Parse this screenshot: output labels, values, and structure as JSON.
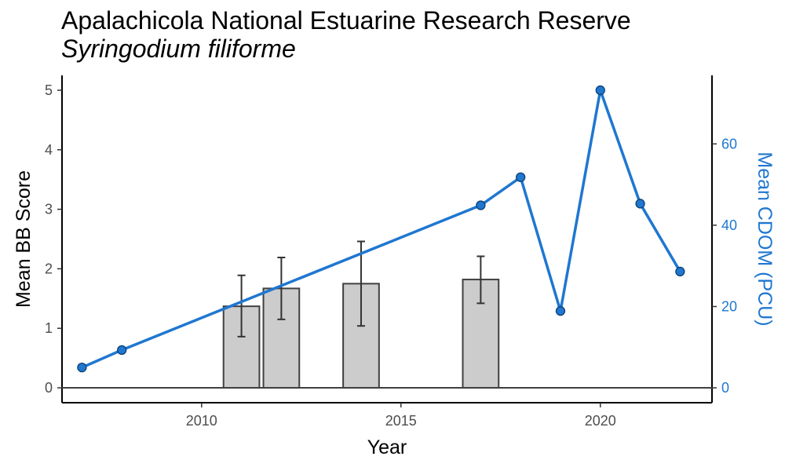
{
  "title": "Apalachicola National Estuarine Research Reserve",
  "subtitle": "Syringodium filiforme",
  "chart_data": {
    "type": "bar+line",
    "x_axis": {
      "label": "Year",
      "range": [
        2006.5,
        2022.8
      ],
      "ticks": [
        2010,
        2015,
        2020
      ]
    },
    "y_left": {
      "label": "Mean BB Score",
      "range": [
        -0.25,
        5.25
      ],
      "ticks": [
        0,
        1,
        2,
        3,
        4,
        5
      ]
    },
    "y_right": {
      "label": "Mean CDOM (PCU)",
      "range": [
        -3.66,
        76.86
      ],
      "ticks": [
        0,
        20,
        40,
        60
      ]
    },
    "bars": {
      "name": "Mean BB Score",
      "color": "#cccccc",
      "points": [
        {
          "year": 2011,
          "value": 1.37,
          "err_low": 0.86,
          "err_high": 1.89
        },
        {
          "year": 2012,
          "value": 1.67,
          "err_low": 1.15,
          "err_high": 2.19
        },
        {
          "year": 2014,
          "value": 1.75,
          "err_low": 1.04,
          "err_high": 2.46
        },
        {
          "year": 2017,
          "value": 1.82,
          "err_low": 1.42,
          "err_high": 2.21
        }
      ]
    },
    "line": {
      "name": "Mean CDOM (PCU)",
      "color": "#1f77d0",
      "points": [
        {
          "year": 2007,
          "value": 5.0
        },
        {
          "year": 2008,
          "value": 9.3
        },
        {
          "year": 2017,
          "value": 44.9
        },
        {
          "year": 2018,
          "value": 51.8
        },
        {
          "year": 2019,
          "value": 18.9
        },
        {
          "year": 2020,
          "value": 73.2
        },
        {
          "year": 2021,
          "value": 45.3
        },
        {
          "year": 2022,
          "value": 28.6
        }
      ]
    },
    "grid": false,
    "legend": "none"
  }
}
